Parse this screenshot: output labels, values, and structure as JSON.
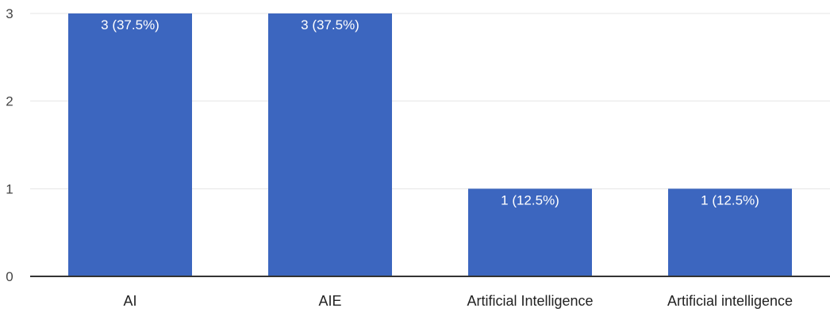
{
  "chart_data": {
    "type": "bar",
    "categories": [
      "AI",
      "AIE",
      "Artificial Intelligence",
      "Artificial intelligence"
    ],
    "values": [
      3,
      3,
      1,
      1
    ],
    "data_labels": [
      "3 (37.5%)",
      "3 (37.5%)",
      "1 (12.5%)",
      "1 (12.5%)"
    ],
    "y_ticks": [
      "0",
      "1",
      "2",
      "3"
    ],
    "ylim": [
      0,
      3
    ],
    "grid": true,
    "legend": "none",
    "colors": {
      "bar": "#3c66bf",
      "grid": "#e4e4e4",
      "baseline": "#333333"
    }
  }
}
